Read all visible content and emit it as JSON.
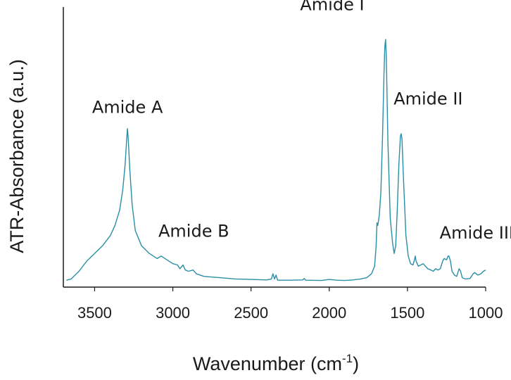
{
  "chart_data": {
    "type": "line",
    "xlabel": "Wavenumber (cm",
    "xlabel_superscript": "-1",
    "xlabel_suffix": ")",
    "ylabel": "ATR-Absorbance (a.u.)",
    "xlim": [
      3700,
      1000
    ],
    "ylim": [
      0,
      1.0
    ],
    "x_reversed": true,
    "grid": false,
    "legend": "none",
    "x_ticks": [
      3500,
      3000,
      2500,
      2000,
      1500,
      1000
    ],
    "x_tick_labels": [
      "3500",
      "3000",
      "2500",
      "2000",
      "1500",
      "1000"
    ],
    "annotations": [
      {
        "text": "Amide A",
        "x": 3290,
        "y": 0.62
      },
      {
        "text": "Amide B",
        "x": 3070,
        "y": 0.14
      },
      {
        "text": "Amide I",
        "x": 1650,
        "y": 0.98
      },
      {
        "text": "Amide II",
        "x": 1530,
        "y": 0.64
      },
      {
        "text": "Amide III",
        "x": 1240,
        "y": 0.13
      }
    ],
    "series": [
      {
        "color": "#2a8fa6",
        "points": [
          [
            3680,
            0.005
          ],
          [
            3650,
            0.01
          ],
          [
            3600,
            0.04
          ],
          [
            3550,
            0.08
          ],
          [
            3500,
            0.11
          ],
          [
            3450,
            0.14
          ],
          [
            3400,
            0.18
          ],
          [
            3370,
            0.22
          ],
          [
            3340,
            0.28
          ],
          [
            3320,
            0.36
          ],
          [
            3305,
            0.46
          ],
          [
            3295,
            0.56
          ],
          [
            3290,
            0.6
          ],
          [
            3285,
            0.56
          ],
          [
            3275,
            0.44
          ],
          [
            3260,
            0.3
          ],
          [
            3240,
            0.2
          ],
          [
            3200,
            0.14
          ],
          [
            3150,
            0.11
          ],
          [
            3100,
            0.09
          ],
          [
            3075,
            0.1
          ],
          [
            3050,
            0.09
          ],
          [
            3000,
            0.07
          ],
          [
            2970,
            0.065
          ],
          [
            2955,
            0.05
          ],
          [
            2935,
            0.065
          ],
          [
            2920,
            0.045
          ],
          [
            2900,
            0.04
          ],
          [
            2870,
            0.045
          ],
          [
            2850,
            0.03
          ],
          [
            2800,
            0.02
          ],
          [
            2700,
            0.015
          ],
          [
            2600,
            0.01
          ],
          [
            2500,
            0.008
          ],
          [
            2400,
            0.006
          ],
          [
            2370,
            0.01
          ],
          [
            2360,
            0.03
          ],
          [
            2350,
            0.01
          ],
          [
            2340,
            0.025
          ],
          [
            2330,
            0.005
          ],
          [
            2250,
            0.005
          ],
          [
            2170,
            0.006
          ],
          [
            2160,
            0.012
          ],
          [
            2150,
            0.005
          ],
          [
            2050,
            0.004
          ],
          [
            2000,
            0.008
          ],
          [
            1950,
            0.005
          ],
          [
            1900,
            0.004
          ],
          [
            1850,
            0.006
          ],
          [
            1800,
            0.01
          ],
          [
            1760,
            0.015
          ],
          [
            1730,
            0.03
          ],
          [
            1710,
            0.06
          ],
          [
            1700,
            0.14
          ],
          [
            1695,
            0.23
          ],
          [
            1690,
            0.22
          ],
          [
            1680,
            0.26
          ],
          [
            1670,
            0.35
          ],
          [
            1660,
            0.55
          ],
          [
            1650,
            0.82
          ],
          [
            1645,
            0.92
          ],
          [
            1640,
            0.95
          ],
          [
            1635,
            0.88
          ],
          [
            1625,
            0.55
          ],
          [
            1610,
            0.25
          ],
          [
            1595,
            0.15
          ],
          [
            1585,
            0.11
          ],
          [
            1575,
            0.14
          ],
          [
            1565,
            0.28
          ],
          [
            1555,
            0.46
          ],
          [
            1545,
            0.57
          ],
          [
            1540,
            0.58
          ],
          [
            1535,
            0.56
          ],
          [
            1525,
            0.4
          ],
          [
            1510,
            0.18
          ],
          [
            1495,
            0.1
          ],
          [
            1480,
            0.07
          ],
          [
            1465,
            0.065
          ],
          [
            1455,
            0.085
          ],
          [
            1450,
            0.1
          ],
          [
            1445,
            0.08
          ],
          [
            1430,
            0.06
          ],
          [
            1415,
            0.065
          ],
          [
            1400,
            0.07
          ],
          [
            1385,
            0.06
          ],
          [
            1370,
            0.05
          ],
          [
            1350,
            0.045
          ],
          [
            1335,
            0.04
          ],
          [
            1320,
            0.05
          ],
          [
            1305,
            0.045
          ],
          [
            1290,
            0.05
          ],
          [
            1275,
            0.08
          ],
          [
            1265,
            0.09
          ],
          [
            1250,
            0.085
          ],
          [
            1240,
            0.1
          ],
          [
            1235,
            0.1
          ],
          [
            1225,
            0.08
          ],
          [
            1215,
            0.04
          ],
          [
            1200,
            0.025
          ],
          [
            1185,
            0.02
          ],
          [
            1170,
            0.05
          ],
          [
            1160,
            0.04
          ],
          [
            1150,
            0.015
          ],
          [
            1130,
            0.01
          ],
          [
            1100,
            0.012
          ],
          [
            1080,
            0.03
          ],
          [
            1070,
            0.035
          ],
          [
            1050,
            0.025
          ],
          [
            1030,
            0.03
          ],
          [
            1015,
            0.04
          ],
          [
            1000,
            0.045
          ]
        ]
      }
    ]
  }
}
